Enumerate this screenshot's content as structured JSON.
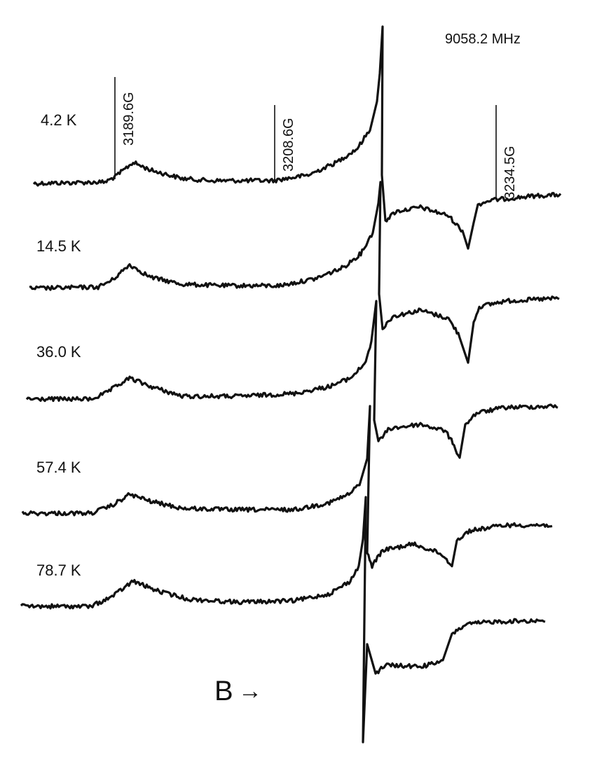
{
  "figure": {
    "frequency_label": "9058.2 MHz",
    "field_axis_label": "B",
    "field_arrow": "→"
  },
  "chart_data": {
    "type": "line",
    "title": "",
    "xlabel": "B",
    "ylabel": "",
    "x_unit": "G",
    "field_markers": [
      {
        "label": "3189.6G",
        "value": 3189.6
      },
      {
        "label": "3208.6G",
        "value": 3208.6
      },
      {
        "label": "3234.5G",
        "value": 3234.5
      }
    ],
    "annotation": "9058.2 MHz",
    "series": [
      {
        "name": "4.2 K",
        "temperature_K": 4.2
      },
      {
        "name": "14.5 K",
        "temperature_K": 14.5
      },
      {
        "name": "36.0 K",
        "temperature_K": 36.0
      },
      {
        "name": "57.4 K",
        "temperature_K": 57.4
      },
      {
        "name": "78.7 K",
        "temperature_K": 78.7
      }
    ],
    "grid": false,
    "legend": "none"
  }
}
